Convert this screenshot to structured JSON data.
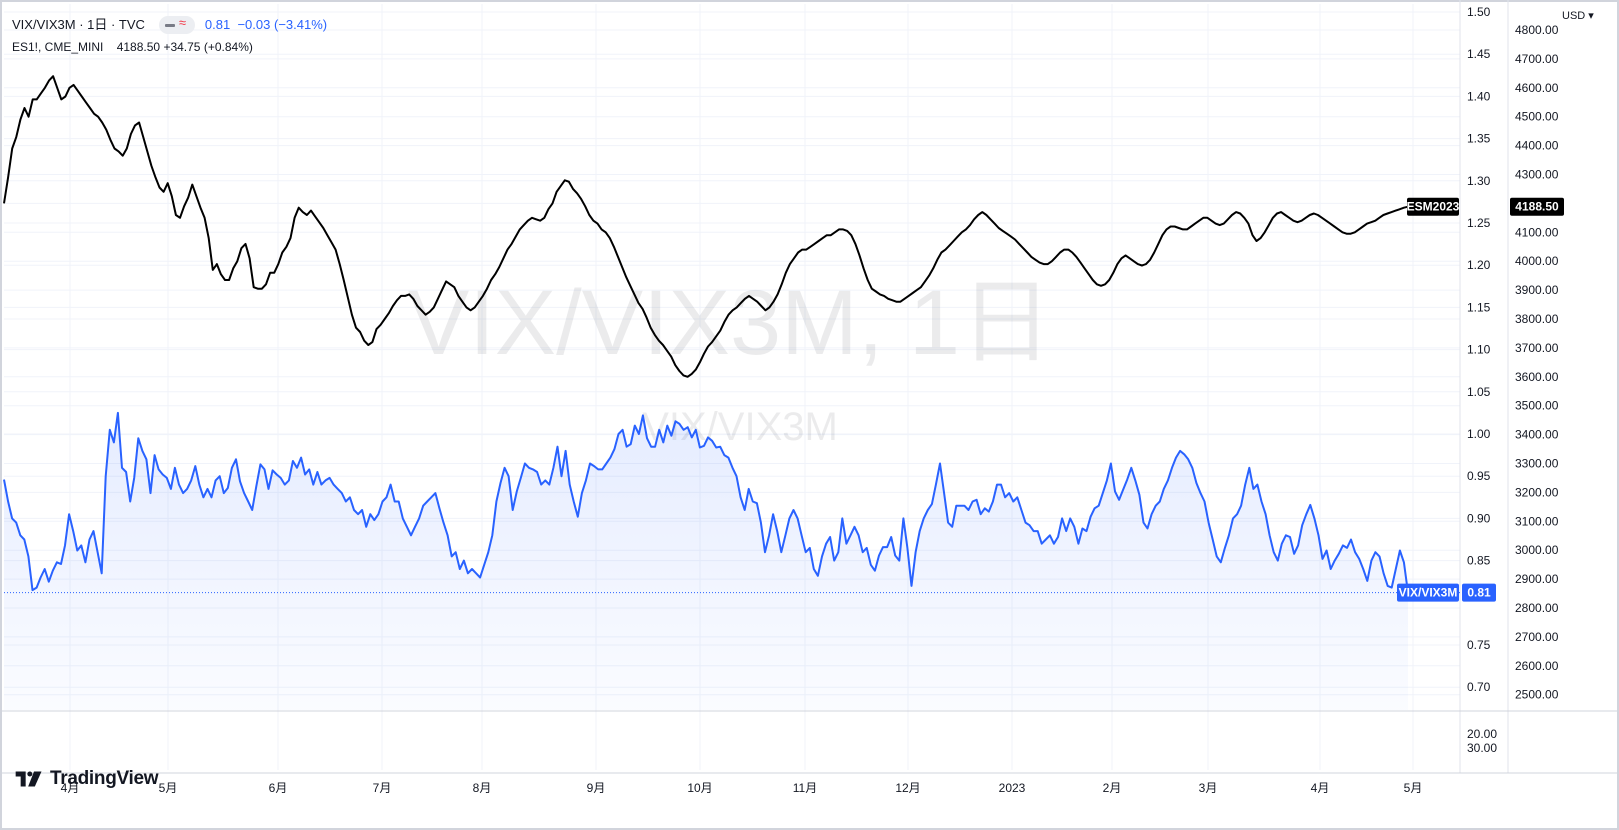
{
  "header": {
    "symbol": "VIX/VIX3M · 1日 · TVC",
    "last": "0.81",
    "change": "−0.03",
    "change_pct": "(−3.41%)",
    "overlay_symbol": "ES1!, CME_MINI",
    "overlay_last": "4188.50",
    "overlay_change": "+34.75",
    "overlay_change_pct": "(+0.84%)",
    "icon_line": "line-style-icon",
    "icon_wave": "approx-wave-icon"
  },
  "currency_button": "USD",
  "watermark": {
    "main": "VIX/VIX3M, 1日",
    "sub": "VIX/VIX3M"
  },
  "logo": {
    "text": "TradingView",
    "icon": "tradingview-logo-icon"
  },
  "colors": {
    "ratio_line": "#2962ff",
    "futures_line": "#000000",
    "grid": "#f0f3fa",
    "text": "#131722"
  },
  "chart_data": {
    "type": "line",
    "x_labels": [
      "4月",
      "5月",
      "6月",
      "7月",
      "8月",
      "9月",
      "10月",
      "11月",
      "12月",
      "2023",
      "2月",
      "3月",
      "4月",
      "5月"
    ],
    "left_axis": {
      "ticks": [
        "1.50",
        "1.45",
        "1.40",
        "1.35",
        "1.30",
        "1.25",
        "1.20",
        "1.15",
        "1.10",
        "1.05",
        "1.00",
        "0.95",
        "0.90",
        "0.85",
        "0.75",
        "0.70"
      ],
      "range": [
        0.7,
        1.5
      ]
    },
    "right_axis": {
      "ticks": [
        "4800.00",
        "4700.00",
        "4600.00",
        "4500.00",
        "4400.00",
        "4300.00",
        "4200.00",
        "4100.00",
        "4000.00",
        "3900.00",
        "3800.00",
        "3700.00",
        "3600.00",
        "3500.00",
        "3400.00",
        "3300.00",
        "3200.00",
        "3100.00",
        "3000.00",
        "2900.00",
        "2800.00",
        "2700.00",
        "2600.00",
        "2500.00"
      ],
      "range": [
        2500,
        4800
      ]
    },
    "sub_pane_ticks": [
      "20.00",
      "30.00"
    ],
    "series": [
      {
        "name": "VIX/VIX3M",
        "axis": "left",
        "color": "#2962ff",
        "last_label": "0.81",
        "values": [
          0.946,
          0.92,
          0.9,
          0.895,
          0.88,
          0.875,
          0.855,
          0.815,
          0.818,
          0.83,
          0.84,
          0.825,
          0.838,
          0.848,
          0.846,
          0.868,
          0.905,
          0.885,
          0.862,
          0.868,
          0.848,
          0.875,
          0.885,
          0.86,
          0.835,
          0.95,
          1.005,
          0.99,
          1.025,
          0.96,
          0.955,
          0.92,
          0.948,
          0.995,
          0.98,
          0.97,
          0.93,
          0.975,
          0.958,
          0.952,
          0.948,
          0.935,
          0.96,
          0.94,
          0.93,
          0.935,
          0.945,
          0.962,
          0.94,
          0.925,
          0.935,
          0.925,
          0.945,
          0.95,
          0.93,
          0.936,
          0.96,
          0.97,
          0.944,
          0.93,
          0.92,
          0.91,
          0.938,
          0.964,
          0.958,
          0.935,
          0.957,
          0.952,
          0.948,
          0.94,
          0.945,
          0.968,
          0.96,
          0.972,
          0.952,
          0.958,
          0.94,
          0.955,
          0.94,
          0.945,
          0.948,
          0.94,
          0.935,
          0.93,
          0.92,
          0.925,
          0.91,
          0.905,
          0.91,
          0.89,
          0.905,
          0.898,
          0.905,
          0.92,
          0.925,
          0.94,
          0.92,
          0.92,
          0.9,
          0.89,
          0.88,
          0.89,
          0.9,
          0.915,
          0.92,
          0.925,
          0.93,
          0.912,
          0.895,
          0.88,
          0.855,
          0.86,
          0.84,
          0.85,
          0.835,
          0.84,
          0.835,
          0.83,
          0.845,
          0.86,
          0.88,
          0.92,
          0.942,
          0.96,
          0.95,
          0.91,
          0.932,
          0.948,
          0.965,
          0.96,
          0.958,
          0.955,
          0.94,
          0.945,
          0.94,
          0.96,
          0.985,
          0.95,
          0.98,
          0.94,
          0.92,
          0.902,
          0.93,
          0.945,
          0.965,
          0.962,
          0.958,
          0.958,
          0.965,
          0.972,
          0.982,
          1.0,
          1.005,
          0.985,
          0.988,
          1.01,
          1.0,
          1.022,
          0.995,
          0.985,
          0.985,
          1.005,
          0.99,
          1.01,
          0.998,
          1.015,
          1.012,
          1.005,
          1.008,
          0.996,
          1.005,
          0.984,
          0.986,
          0.996,
          0.992,
          0.984,
          0.985,
          0.975,
          0.972,
          0.96,
          0.95,
          0.925,
          0.91,
          0.935,
          0.92,
          0.918,
          0.895,
          0.86,
          0.88,
          0.905,
          0.885,
          0.86,
          0.88,
          0.9,
          0.91,
          0.9,
          0.88,
          0.86,
          0.865,
          0.84,
          0.832,
          0.855,
          0.87,
          0.878,
          0.85,
          0.86,
          0.9,
          0.87,
          0.88,
          0.89,
          0.88,
          0.86,
          0.865,
          0.845,
          0.838,
          0.856,
          0.866,
          0.866,
          0.878,
          0.856,
          0.85,
          0.9,
          0.865,
          0.82,
          0.86,
          0.885,
          0.9,
          0.91,
          0.917,
          0.94,
          0.965,
          0.93,
          0.895,
          0.89,
          0.915,
          0.915,
          0.915,
          0.91,
          0.92,
          0.922,
          0.905,
          0.912,
          0.908,
          0.92,
          0.94,
          0.94,
          0.925,
          0.93,
          0.92,
          0.925,
          0.91,
          0.895,
          0.892,
          0.885,
          0.885,
          0.87,
          0.875,
          0.88,
          0.87,
          0.878,
          0.9,
          0.885,
          0.9,
          0.89,
          0.87,
          0.888,
          0.885,
          0.902,
          0.912,
          0.915,
          0.93,
          0.945,
          0.965,
          0.932,
          0.922,
          0.934,
          0.946,
          0.96,
          0.945,
          0.928,
          0.895,
          0.888,
          0.905,
          0.915,
          0.92,
          0.935,
          0.945,
          0.96,
          0.972,
          0.98,
          0.976,
          0.97,
          0.96,
          0.942,
          0.93,
          0.92,
          0.895,
          0.875,
          0.855,
          0.848,
          0.865,
          0.88,
          0.9,
          0.905,
          0.915,
          0.94,
          0.96,
          0.935,
          0.94,
          0.92,
          0.905,
          0.88,
          0.86,
          0.85,
          0.87,
          0.88,
          0.878,
          0.858,
          0.868,
          0.892,
          0.905,
          0.916,
          0.9,
          0.88,
          0.852,
          0.862,
          0.84,
          0.85,
          0.858,
          0.868,
          0.865,
          0.875,
          0.86,
          0.852,
          0.84,
          0.826,
          0.85,
          0.86,
          0.855,
          0.835,
          0.82,
          0.818,
          0.84,
          0.862,
          0.848,
          0.812
        ]
      },
      {
        "name": "ESM2023",
        "axis": "right",
        "color": "#000000",
        "last_label": "4188.50",
        "values": [
          4200,
          4290,
          4390,
          4430,
          4490,
          4530,
          4500,
          4560,
          4560,
          4580,
          4600,
          4625,
          4640,
          4600,
          4560,
          4570,
          4600,
          4610,
          4590,
          4570,
          4550,
          4530,
          4510,
          4500,
          4480,
          4455,
          4420,
          4390,
          4380,
          4365,
          4390,
          4440,
          4470,
          4480,
          4430,
          4380,
          4330,
          4290,
          4255,
          4240,
          4270,
          4225,
          4160,
          4150,
          4190,
          4220,
          4265,
          4225,
          4185,
          4150,
          4080,
          3970,
          3990,
          3955,
          3935,
          3935,
          3975,
          4000,
          4045,
          4060,
          4010,
          3910,
          3905,
          3905,
          3920,
          3960,
          3960,
          3990,
          4030,
          4050,
          4080,
          4150,
          4185,
          4170,
          4160,
          4175,
          4155,
          4135,
          4115,
          4090,
          4065,
          4040,
          3990,
          3935,
          3875,
          3815,
          3770,
          3755,
          3725,
          3710,
          3720,
          3765,
          3780,
          3800,
          3820,
          3845,
          3865,
          3880,
          3880,
          3885,
          3870,
          3845,
          3830,
          3815,
          3825,
          3840,
          3870,
          3900,
          3930,
          3920,
          3910,
          3880,
          3860,
          3840,
          3830,
          3840,
          3860,
          3880,
          3905,
          3935,
          3955,
          3980,
          4010,
          4040,
          4060,
          4085,
          4110,
          4125,
          4140,
          4150,
          4145,
          4140,
          4150,
          4180,
          4200,
          4240,
          4260,
          4280,
          4275,
          4250,
          4235,
          4215,
          4190,
          4160,
          4140,
          4130,
          4110,
          4100,
          4080,
          4050,
          4015,
          3980,
          3945,
          3915,
          3885,
          3855,
          3835,
          3805,
          3770,
          3745,
          3725,
          3710,
          3690,
          3670,
          3640,
          3620,
          3605,
          3600,
          3610,
          3625,
          3650,
          3680,
          3705,
          3720,
          3740,
          3760,
          3790,
          3815,
          3830,
          3840,
          3855,
          3870,
          3880,
          3870,
          3860,
          3845,
          3830,
          3840,
          3860,
          3885,
          3920,
          3960,
          3990,
          4010,
          4030,
          4040,
          4040,
          4050,
          4060,
          4070,
          4080,
          4090,
          4090,
          4100,
          4110,
          4110,
          4105,
          4090,
          4060,
          4020,
          3975,
          3935,
          3905,
          3895,
          3885,
          3880,
          3870,
          3865,
          3860,
          3860,
          3870,
          3880,
          3890,
          3900,
          3910,
          3930,
          3950,
          3975,
          4005,
          4030,
          4040,
          4055,
          4070,
          4085,
          4100,
          4110,
          4125,
          4145,
          4160,
          4170,
          4160,
          4145,
          4130,
          4115,
          4105,
          4095,
          4085,
          4075,
          4060,
          4045,
          4030,
          4015,
          4005,
          3995,
          3990,
          3990,
          4000,
          4015,
          4030,
          4040,
          4040,
          4030,
          4015,
          3995,
          3975,
          3955,
          3935,
          3920,
          3915,
          3920,
          3935,
          3960,
          3990,
          4010,
          4020,
          4010,
          4000,
          3990,
          3985,
          3990,
          4005,
          4030,
          4060,
          4090,
          4110,
          4120,
          4120,
          4115,
          4110,
          4110,
          4120,
          4130,
          4140,
          4150,
          4150,
          4140,
          4130,
          4125,
          4130,
          4145,
          4160,
          4170,
          4165,
          4150,
          4130,
          4090,
          4070,
          4080,
          4100,
          4125,
          4150,
          4165,
          4170,
          4160,
          4150,
          4140,
          4135,
          4140,
          4150,
          4160,
          4165,
          4160,
          4150,
          4140,
          4130,
          4120,
          4110,
          4100,
          4095,
          4095,
          4100,
          4110,
          4120,
          4130,
          4135,
          4140,
          4150,
          4160,
          4165,
          4170,
          4175,
          4180,
          4185,
          4188.5
        ]
      }
    ],
    "price_tags": [
      {
        "name": "ESM2023",
        "value": "4188.50"
      },
      {
        "name": "VIX/VIX3M",
        "value": "0.81"
      }
    ],
    "grid": true,
    "legend_position": "top-left"
  }
}
